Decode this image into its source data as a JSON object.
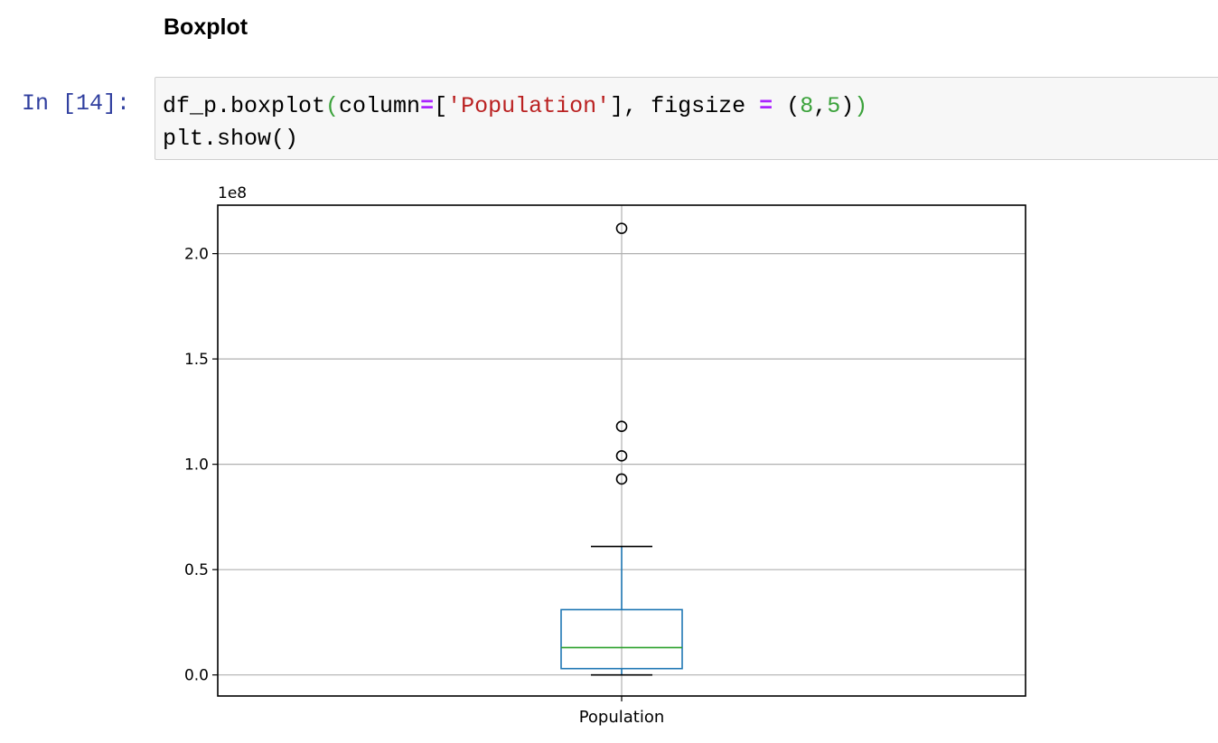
{
  "markdown": {
    "heading": "Boxplot"
  },
  "cell": {
    "prompt": "In [14]:",
    "code_line1": {
      "t1": "df_p.boxplot",
      "t2": "(",
      "t3": "column",
      "t4": "=",
      "t5": "[",
      "t6": "'Population'",
      "t7": "], figsize ",
      "t8": "=",
      "t9": " ",
      "t10": "(",
      "t11": "8",
      "t12": ",",
      "t13": "5",
      "t14": ")",
      "t15": ")"
    },
    "code_line2": "plt.show()"
  },
  "chart_data": {
    "type": "boxplot",
    "offset_text": "1e8",
    "categories": [
      "Population"
    ],
    "ylim": [
      -0.1,
      2.23
    ],
    "y_ticks": [
      0.0,
      0.5,
      1.0,
      1.5,
      2.0
    ],
    "y_tick_labels": [
      "0.0",
      "0.5",
      "1.0",
      "1.5",
      "2.0"
    ],
    "grid": true,
    "boxes": [
      {
        "name": "Population",
        "whisker_low": 0.0,
        "q1": 0.03,
        "median": 0.13,
        "q3": 0.31,
        "whisker_high": 0.61,
        "fliers": [
          0.93,
          1.04,
          1.18,
          2.12
        ]
      }
    ],
    "colors": {
      "box": "#1f77b4",
      "median": "#2ca02c",
      "whisker": "#1f77b4",
      "cap": "#000000",
      "flier": "#000000",
      "grid": "#b0b0b0"
    }
  }
}
